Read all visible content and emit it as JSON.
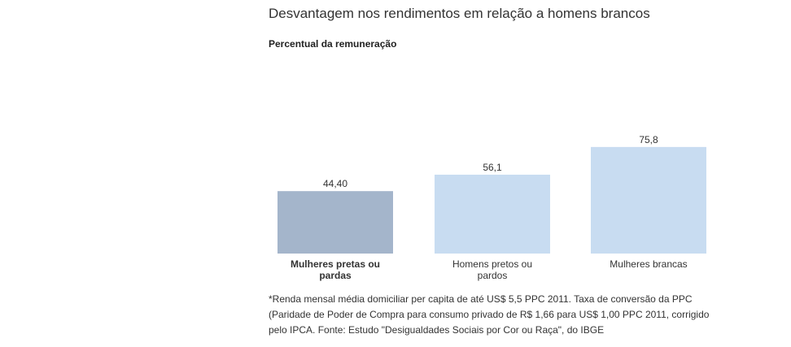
{
  "title": "Desvantagem nos rendimentos em relação a homens brancos",
  "subtitle": "Percentual da remuneração",
  "footnote": "*Renda mensal média domiciliar per capita de até US$ 5,5 PPC 2011. Taxa de conversão da PPC (Paridade de Poder de Compra para consumo privado de R$ 1,66 para US$ 1,00 PPC 2011, corrigido pelo IPCA. Fonte: Estudo \"Desigualdades Sociais por Cor ou Raça\", do IBGE",
  "chart_data": {
    "type": "bar",
    "categories": [
      [
        "Mulheres pretas ou",
        "pardas"
      ],
      [
        "Homens pretos ou",
        "pardos"
      ],
      [
        "Mulheres brancas"
      ]
    ],
    "values": [
      44.4,
      56.1,
      75.8
    ],
    "value_labels": [
      "44,40",
      "56,1",
      "75,8"
    ],
    "bar_colors": [
      "#a4b5cb",
      "#c8dcf1",
      "#c8dcf1"
    ],
    "category_label_weight": [
      "bold",
      "normal",
      "normal"
    ],
    "title": "Desvantagem nos rendimentos em relação a homens brancos",
    "ylabel": "Percentual da remuneração",
    "ylim": [
      0,
      80
    ],
    "grid": false,
    "legend": "none",
    "baseline_color": "#d9d9d9"
  }
}
